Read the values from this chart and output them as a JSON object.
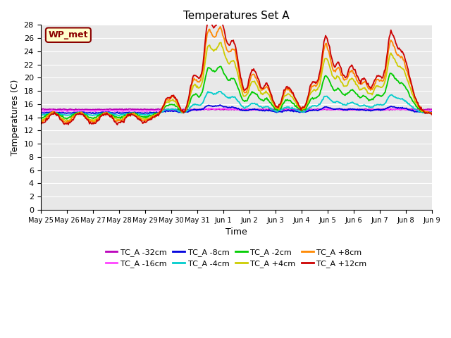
{
  "title": "Temperatures Set A",
  "xlabel": "Time",
  "ylabel": "Temperatures (C)",
  "ylim": [
    0,
    28
  ],
  "yticks": [
    0,
    2,
    4,
    6,
    8,
    10,
    12,
    14,
    16,
    18,
    20,
    22,
    24,
    26,
    28
  ],
  "plot_bg": "#e8e8e8",
  "annotation": "WP_met",
  "annotation_color": "#8b0000",
  "annotation_bg": "#ffffcc",
  "series": [
    {
      "label": "TC_A -32cm",
      "color": "#bb00bb",
      "lw": 1.3
    },
    {
      "label": "TC_A -16cm",
      "color": "#ff44ff",
      "lw": 1.3
    },
    {
      "label": "TC_A -8cm",
      "color": "#0000dd",
      "lw": 1.3
    },
    {
      "label": "TC_A -4cm",
      "color": "#00cccc",
      "lw": 1.3
    },
    {
      "label": "TC_A -2cm",
      "color": "#00cc00",
      "lw": 1.3
    },
    {
      "label": "TC_A +4cm",
      "color": "#cccc00",
      "lw": 1.3
    },
    {
      "label": "TC_A +8cm",
      "color": "#ff8800",
      "lw": 1.3
    },
    {
      "label": "TC_A +12cm",
      "color": "#cc0000",
      "lw": 1.3
    }
  ],
  "x_labels": [
    "May 25",
    "May 26",
    "May 27",
    "May 28",
    "May 29",
    "May 30",
    "May 31",
    "Jun 1",
    "Jun 2",
    "Jun 3",
    "Jun 4",
    "Jun 5",
    "Jun 6",
    "Jun 7",
    "Jun 8",
    "Jun 9"
  ],
  "n_points": 480,
  "x_range": 15
}
